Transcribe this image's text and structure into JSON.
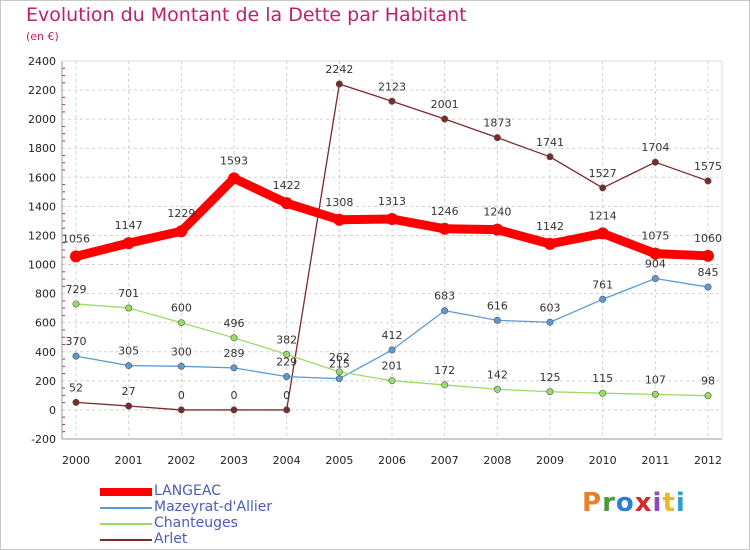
{
  "header": {
    "title": "Evolution du Montant de la Dette par Habitant",
    "subtitle": "(en €)"
  },
  "logo": {
    "text": "Proxiti",
    "colors": [
      "#e8812a",
      "#4a9a3c",
      "#2a7fd0",
      "#d02a2a",
      "#8a4ac0",
      "#e8b82a",
      "#2aa0d0"
    ]
  },
  "chart_data": {
    "type": "line",
    "x": [
      "2000",
      "2001",
      "2002",
      "2003",
      "2004",
      "2005",
      "2006",
      "2007",
      "2008",
      "2009",
      "2010",
      "2011",
      "2012"
    ],
    "ylim": [
      -200,
      2400
    ],
    "yticks": [
      "-200",
      "0",
      "200",
      "400",
      "600",
      "800",
      "1000",
      "1200",
      "1400",
      "1600",
      "1800",
      "2000",
      "2200",
      "2400"
    ],
    "grid": true,
    "legend_position": "bottom-left",
    "series": [
      {
        "name": "LANGEAC",
        "color": "#ff0000",
        "values": [
          1056,
          1147,
          1229,
          1593,
          1422,
          1308,
          1313,
          1246,
          1240,
          1142,
          1214,
          1075,
          1060
        ],
        "labels": [
          "1056",
          "1147",
          "1229",
          "1593",
          "1422",
          "1308",
          "1313",
          "1246",
          "1240",
          "1142",
          "1214",
          "1075",
          "1060"
        ]
      },
      {
        "name": "Mazeyrat-d'Allier",
        "color": "#5b9bd5",
        "values": [
          370,
          305,
          300,
          289,
          229,
          215,
          412,
          683,
          616,
          603,
          761,
          904,
          845
        ],
        "labels": [
          "370",
          "305",
          "300",
          "289",
          "229",
          "215",
          "412",
          "683",
          "616",
          "603",
          "761",
          "904",
          "845"
        ]
      },
      {
        "name": "Chanteuges",
        "color": "#99dd66",
        "values": [
          729,
          701,
          600,
          496,
          382,
          262,
          201,
          172,
          142,
          125,
          115,
          107,
          98
        ],
        "labels": [
          "729",
          "701",
          "600",
          "496",
          "382",
          "262",
          "201",
          "172",
          "142",
          "125",
          "115",
          "107",
          "98"
        ]
      },
      {
        "name": "Arlet",
        "color": "#7a2a2a",
        "values": [
          52,
          27,
          0,
          0,
          0,
          2242,
          2123,
          2001,
          1873,
          1741,
          1527,
          1704,
          1575
        ],
        "labels": [
          "52",
          "27",
          "0",
          "0",
          "0",
          "2242",
          "2123",
          "2001",
          "1873",
          "1741",
          "1527",
          "1704",
          "1575"
        ]
      }
    ]
  }
}
